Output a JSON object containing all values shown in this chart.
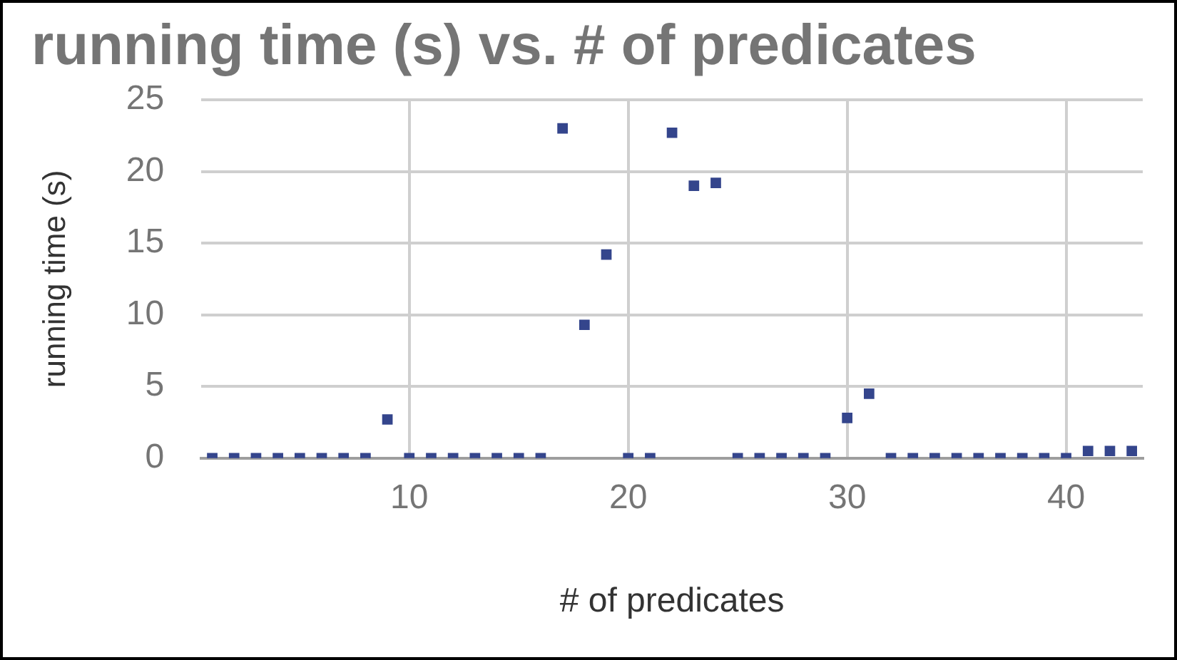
{
  "chart_data": {
    "type": "scatter",
    "title": "running time (s) vs. # of predicates",
    "xlabel": "# of predicates",
    "ylabel": "running time (s)",
    "x": [
      1,
      2,
      3,
      4,
      5,
      6,
      7,
      8,
      9,
      10,
      11,
      12,
      13,
      14,
      15,
      16,
      17,
      18,
      19,
      20,
      21,
      22,
      23,
      24,
      25,
      26,
      27,
      28,
      29,
      30,
      31,
      32,
      33,
      34,
      35,
      36,
      37,
      38,
      39,
      40,
      41,
      42,
      43
    ],
    "series": [
      {
        "color": "#34458c",
        "values": [
          0,
          0,
          0,
          0,
          0,
          0,
          0,
          0,
          2.7,
          0,
          0,
          0,
          0,
          0,
          0,
          0,
          23,
          9.3,
          14.2,
          0,
          0,
          22.7,
          19,
          19.2,
          0,
          0,
          0,
          0,
          0,
          2.8,
          4.5,
          0,
          0,
          0,
          0,
          0,
          0,
          0,
          0,
          0,
          0.5,
          0.5,
          0.5
        ]
      }
    ],
    "xlim": [
      0.5,
      43.5
    ],
    "xticks": [
      10,
      20,
      30,
      40
    ],
    "ylim": [
      0,
      25
    ],
    "yticks": [
      0,
      5,
      10,
      15,
      20,
      25
    ],
    "grid": true,
    "legend": false,
    "marker": "square"
  }
}
